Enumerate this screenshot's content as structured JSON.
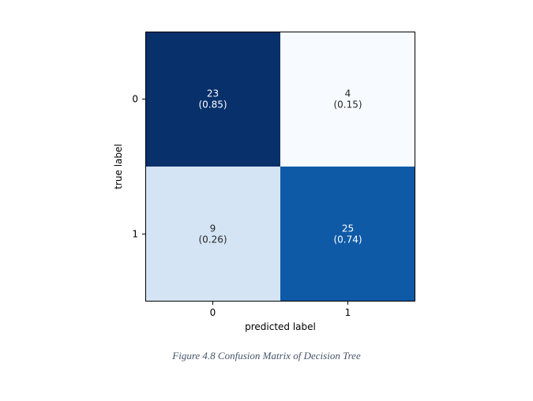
{
  "chart_data": {
    "type": "heatmap",
    "title": "",
    "xlabel": "predicted label",
    "ylabel": "true label",
    "x_categories": [
      "0",
      "1"
    ],
    "y_categories": [
      "0",
      "1"
    ],
    "counts": [
      [
        23,
        4
      ],
      [
        9,
        25
      ]
    ],
    "row_fractions": [
      [
        "(0.85)",
        "(0.15)"
      ],
      [
        "(0.26)",
        "(0.74)"
      ]
    ],
    "colormap": "Blues",
    "grid": false,
    "colors": {
      "cell_0_0": "#08306b",
      "cell_0_1": "#f7fbff",
      "cell_1_0": "#d4e4f4",
      "cell_1_1": "#0e5aa7",
      "text_light": "#ffffff",
      "text_dark": "#262626"
    }
  },
  "caption": "Figure 4.8 Confusion Matrix of Decision Tree"
}
